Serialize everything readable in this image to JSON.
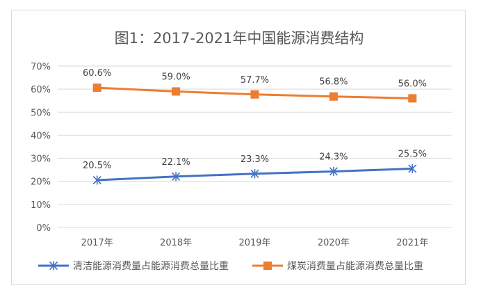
{
  "chart_data": {
    "type": "line",
    "title": "图1：2017-2021年中国能源消费结构",
    "xlabel": "",
    "ylabel": "",
    "categories": [
      "2017年",
      "2018年",
      "2019年",
      "2020年",
      "2021年"
    ],
    "ylim": [
      0,
      70
    ],
    "yticks": [
      0,
      10,
      20,
      30,
      40,
      50,
      60,
      70
    ],
    "y_tick_format": "percent",
    "grid": true,
    "legend_position": "bottom",
    "series": [
      {
        "name": "清洁能源消费量占能源消费总量比重",
        "values": [
          20.5,
          22.1,
          23.3,
          24.3,
          25.5
        ],
        "labels": [
          "20.5%",
          "22.1%",
          "23.3%",
          "24.3%",
          "25.5%"
        ],
        "color": "#4472c4",
        "marker": "asterisk"
      },
      {
        "name": "煤炭消费量占能源消费总量比重",
        "values": [
          60.6,
          59.0,
          57.7,
          56.8,
          56.0
        ],
        "labels": [
          "60.6%",
          "59.0%",
          "57.7%",
          "56.8%",
          "56.0%"
        ],
        "color": "#ed7d31",
        "marker": "square"
      }
    ]
  }
}
